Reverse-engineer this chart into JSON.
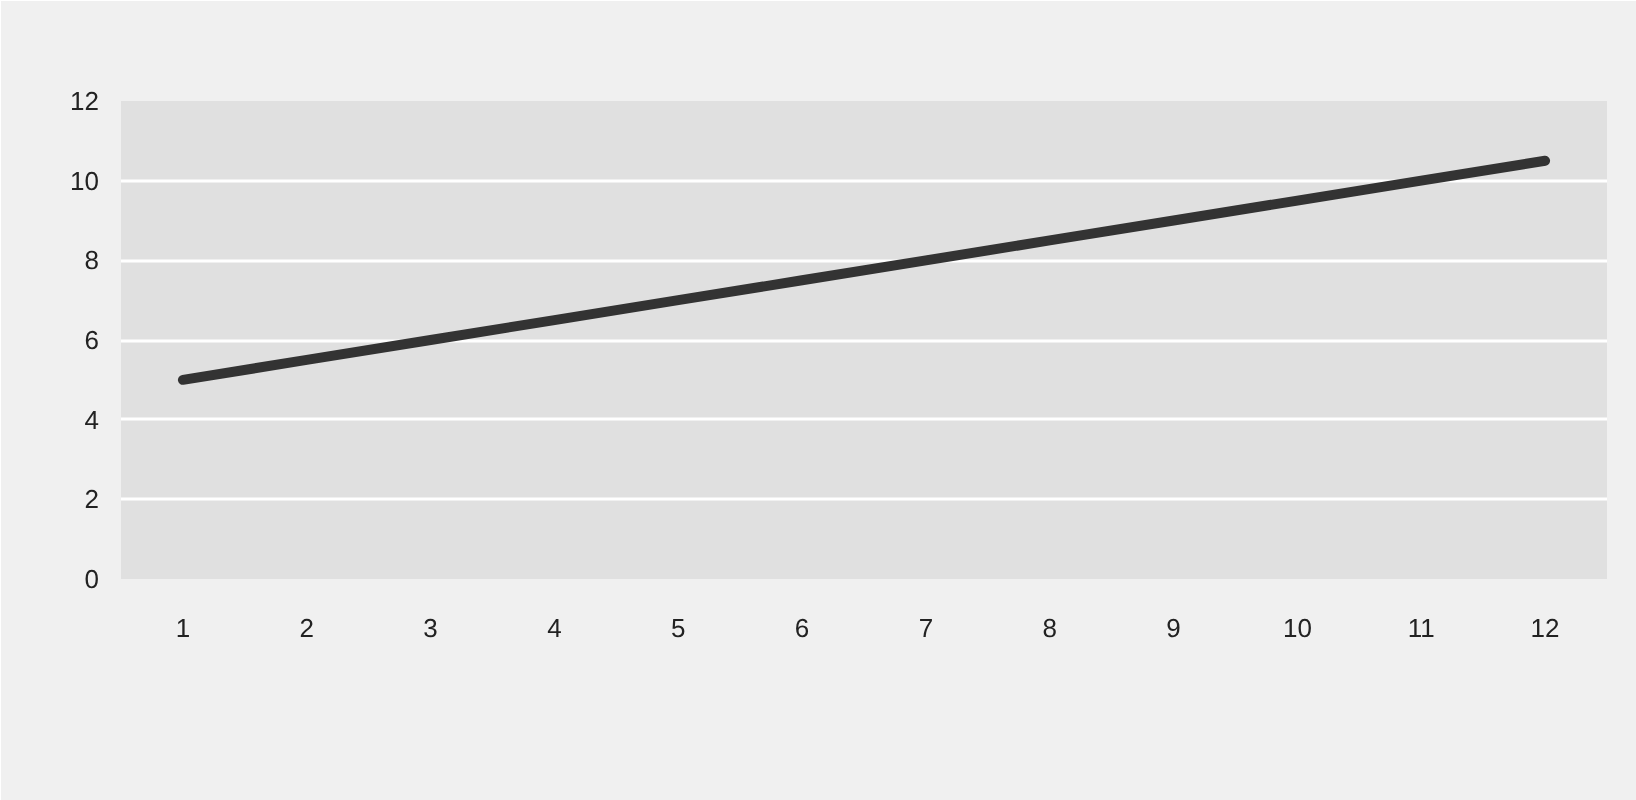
{
  "chart_data": {
    "type": "line",
    "x": [
      1,
      2,
      3,
      4,
      5,
      6,
      7,
      8,
      9,
      10,
      11,
      12
    ],
    "series": [
      {
        "color": "#333333",
        "values": [
          5,
          5.5,
          6,
          6.5,
          7,
          7.5,
          8,
          8.5,
          9,
          9.5,
          10,
          10.5
        ]
      }
    ],
    "xlim": [
      0.5,
      12.5
    ],
    "xticks": [
      1,
      2,
      3,
      4,
      5,
      6,
      7,
      8,
      9,
      10,
      11,
      12
    ],
    "ylim": [
      0,
      12
    ],
    "yticks": [
      0,
      2,
      4,
      6,
      8,
      10,
      12
    ],
    "grid": "y",
    "line_style": "solid",
    "marker": "none"
  }
}
